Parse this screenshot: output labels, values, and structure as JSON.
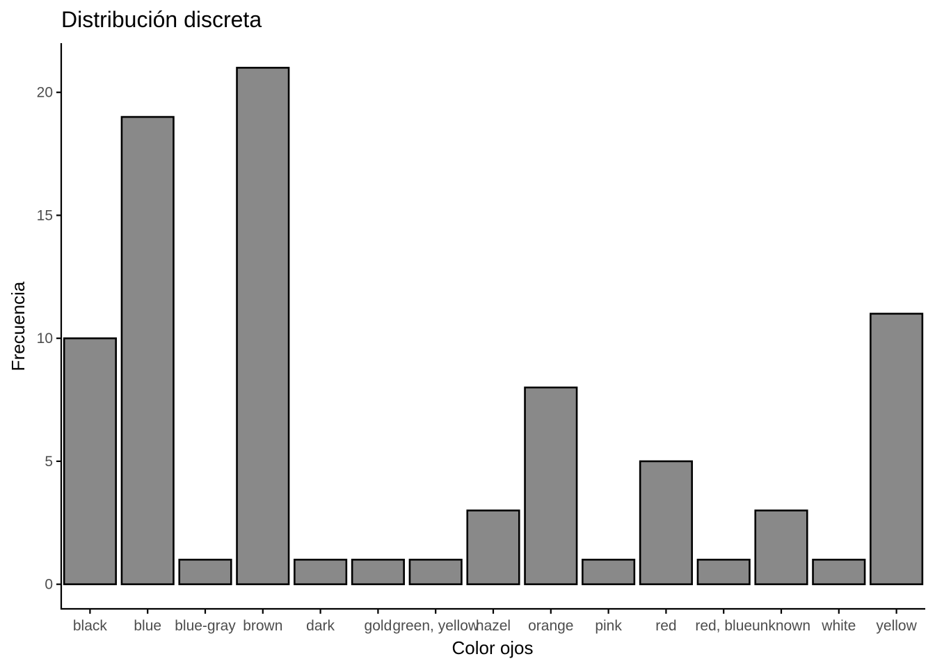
{
  "chart_data": {
    "type": "bar",
    "title": "Distribución discreta",
    "xlabel": "Color ojos",
    "ylabel": "Frecuencia",
    "categories": [
      "black",
      "blue",
      "blue-gray",
      "brown",
      "dark",
      "gold",
      "green, yellow",
      "hazel",
      "orange",
      "pink",
      "red",
      "red, blue",
      "unknown",
      "white",
      "yellow"
    ],
    "values": [
      10,
      19,
      1,
      21,
      1,
      1,
      1,
      3,
      8,
      1,
      5,
      1,
      3,
      1,
      11
    ],
    "ylim": [
      -1,
      22
    ],
    "yticks": [
      0,
      5,
      10,
      15,
      20
    ],
    "grid": false,
    "legend": "none",
    "colors": {
      "bar_fill": "#898989",
      "bar_stroke": "#000000",
      "axis": "#000000",
      "tick_text": "#4d4d4d",
      "background": "#ffffff"
    }
  }
}
